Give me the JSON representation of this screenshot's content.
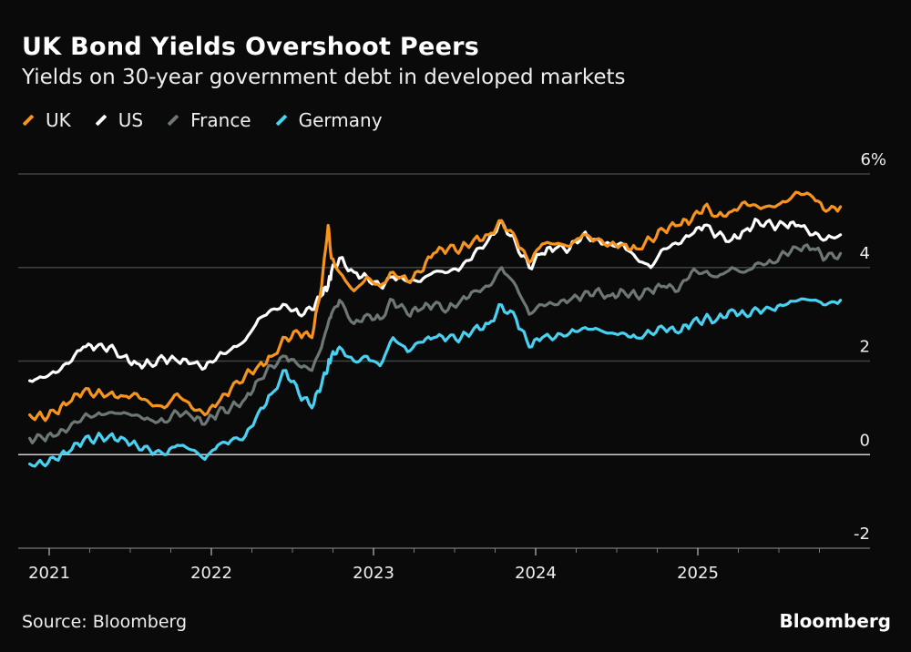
{
  "title": "UK Bond Yields Overshoot Peers",
  "subtitle": "Yields on 30-year government debt in developed markets",
  "source": "Source: Bloomberg",
  "brand": "Bloomberg",
  "chart_data": {
    "type": "line",
    "title": "UK Bond Yields Overshoot Peers",
    "subtitle": "Yields on 30-year government debt in developed markets",
    "xlabel": "",
    "ylabel": "",
    "y_unit": "%",
    "ylim": [
      -2,
      6
    ],
    "yticks": [
      6,
      4,
      2,
      0,
      -2
    ],
    "ytick_labels": [
      "6%",
      "4",
      "2",
      "0",
      "-2"
    ],
    "xlim": [
      2020.87,
      2025.92
    ],
    "xticks": [
      2021,
      2022,
      2023,
      2024,
      2025
    ],
    "xtick_labels": [
      "2021",
      "2022",
      "2023",
      "2024",
      "2025"
    ],
    "minor_xticks": "quarterly",
    "grid": true,
    "legend_position": "top-left",
    "x": [
      2020.88,
      2020.96,
      2021.04,
      2021.12,
      2021.21,
      2021.29,
      2021.37,
      2021.46,
      2021.54,
      2021.62,
      2021.71,
      2021.79,
      2021.88,
      2021.96,
      2022.04,
      2022.12,
      2022.21,
      2022.29,
      2022.37,
      2022.46,
      2022.54,
      2022.62,
      2022.68,
      2022.72,
      2022.74,
      2022.79,
      2022.88,
      2022.96,
      2023.04,
      2023.12,
      2023.21,
      2023.29,
      2023.37,
      2023.46,
      2023.54,
      2023.62,
      2023.71,
      2023.79,
      2023.88,
      2023.96,
      2024.04,
      2024.12,
      2024.21,
      2024.29,
      2024.37,
      2024.46,
      2024.54,
      2024.62,
      2024.71,
      2024.79,
      2024.88,
      2024.96,
      2025.04,
      2025.12,
      2025.21,
      2025.29,
      2025.37,
      2025.46,
      2025.54,
      2025.62,
      2025.71,
      2025.79,
      2025.88
    ],
    "series": [
      {
        "name": "UK",
        "color": "#f7941d",
        "values": [
          0.85,
          0.8,
          0.9,
          1.1,
          1.35,
          1.3,
          1.3,
          1.25,
          1.3,
          1.1,
          1.0,
          1.3,
          1.0,
          0.85,
          1.1,
          1.4,
          1.7,
          1.9,
          2.1,
          2.5,
          2.6,
          2.5,
          3.6,
          4.9,
          4.2,
          3.9,
          3.5,
          3.8,
          3.6,
          3.9,
          3.7,
          3.9,
          4.3,
          4.4,
          4.4,
          4.6,
          4.7,
          5.0,
          4.6,
          4.1,
          4.5,
          4.5,
          4.45,
          4.7,
          4.6,
          4.5,
          4.5,
          4.4,
          4.6,
          4.8,
          4.9,
          5.0,
          5.3,
          5.1,
          5.2,
          5.4,
          5.3,
          5.3,
          5.4,
          5.6,
          5.5,
          5.2,
          5.3
        ]
      },
      {
        "name": "US",
        "color": "#ffffff",
        "values": [
          1.58,
          1.65,
          1.75,
          1.95,
          2.3,
          2.3,
          2.3,
          2.1,
          1.95,
          1.95,
          2.05,
          2.0,
          1.95,
          1.85,
          2.1,
          2.25,
          2.45,
          2.9,
          3.1,
          3.2,
          3.0,
          3.1,
          3.4,
          3.6,
          3.9,
          4.2,
          3.9,
          3.8,
          3.6,
          3.8,
          3.7,
          3.7,
          3.9,
          3.9,
          4.0,
          4.3,
          4.6,
          5.0,
          4.5,
          4.0,
          4.3,
          4.4,
          4.4,
          4.7,
          4.6,
          4.5,
          4.5,
          4.2,
          4.0,
          4.4,
          4.5,
          4.7,
          4.9,
          4.7,
          4.6,
          4.8,
          5.0,
          4.9,
          4.9,
          4.9,
          4.7,
          4.6,
          4.7
        ]
      },
      {
        "name": "France",
        "color": "#6d7775",
        "values": [
          0.35,
          0.35,
          0.4,
          0.55,
          0.8,
          0.85,
          0.9,
          0.9,
          0.85,
          0.75,
          0.7,
          0.9,
          0.8,
          0.65,
          0.9,
          1.0,
          1.2,
          1.6,
          1.9,
          2.1,
          1.9,
          1.8,
          2.3,
          2.8,
          3.0,
          3.3,
          2.8,
          3.0,
          2.9,
          3.3,
          3.0,
          3.1,
          3.2,
          3.1,
          3.3,
          3.5,
          3.6,
          4.0,
          3.6,
          3.0,
          3.2,
          3.2,
          3.3,
          3.4,
          3.5,
          3.4,
          3.5,
          3.4,
          3.5,
          3.6,
          3.5,
          3.9,
          3.9,
          3.8,
          4.0,
          3.9,
          4.1,
          4.1,
          4.3,
          4.4,
          4.4,
          4.2,
          4.3
        ]
      },
      {
        "name": "Germany",
        "color": "#48d1f0",
        "values": [
          -0.2,
          -0.2,
          -0.1,
          0.05,
          0.3,
          0.35,
          0.4,
          0.35,
          0.2,
          0.1,
          0.0,
          0.2,
          0.1,
          -0.1,
          0.2,
          0.3,
          0.4,
          0.9,
          1.3,
          1.8,
          1.3,
          1.0,
          1.5,
          1.9,
          2.1,
          2.3,
          2.0,
          2.1,
          1.9,
          2.5,
          2.2,
          2.4,
          2.5,
          2.5,
          2.5,
          2.7,
          2.8,
          3.2,
          2.9,
          2.3,
          2.5,
          2.5,
          2.6,
          2.7,
          2.7,
          2.6,
          2.6,
          2.5,
          2.6,
          2.7,
          2.6,
          2.8,
          2.9,
          2.9,
          3.1,
          3.0,
          3.1,
          3.1,
          3.2,
          3.3,
          3.3,
          3.2,
          3.3
        ]
      }
    ]
  }
}
